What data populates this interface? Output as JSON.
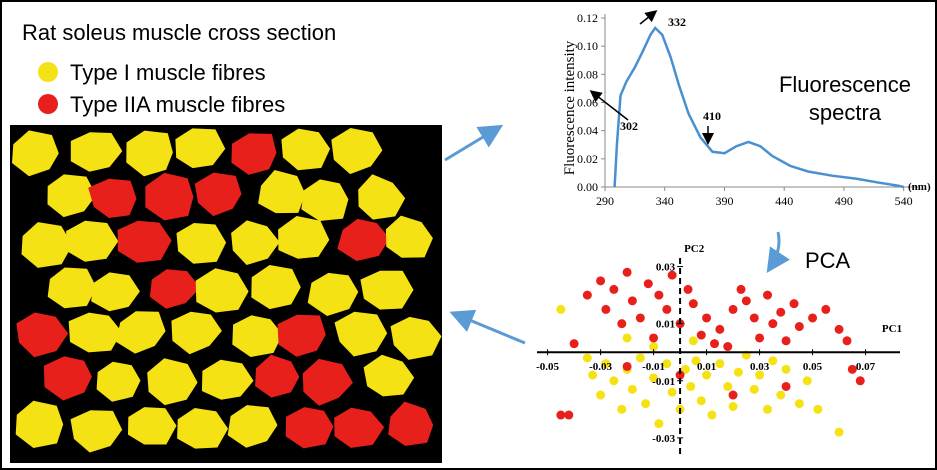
{
  "legend": {
    "title": "Rat soleus muscle cross section"
  },
  "labels": {
    "spectra": [
      "Fluorescence",
      "spectra"
    ],
    "pca": "PCA"
  },
  "chart_data": [
    {
      "type": "line",
      "y_label": "Fluorescence intensity",
      "x_unit": "(nm)",
      "annotations": [
        "332",
        "302",
        "410"
      ],
      "xlim": [
        290,
        552
      ],
      "ylim": [
        0,
        0.12
      ],
      "xticks": [
        290,
        340,
        390,
        440,
        490,
        540
      ],
      "yticks": [
        {
          "value": 0,
          "label": "0.00"
        },
        {
          "value": 0.02,
          "label": "0.02"
        },
        {
          "value": 0.04,
          "label": "0.04"
        },
        {
          "value": 0.06,
          "label": "0.06"
        },
        {
          "value": 0.08,
          "label": "0.08"
        },
        {
          "value": 0.1,
          "label": "0.10"
        },
        0.12
      ],
      "series": [
        {
          "color": "#4a8fd0",
          "x": [
            298,
            300,
            303,
            308,
            315,
            322,
            328,
            332,
            338,
            345,
            352,
            360,
            370,
            380,
            390,
            400,
            410,
            420,
            430,
            445,
            460,
            480,
            500,
            520,
            535,
            540
          ],
          "values": [
            0,
            0.03,
            0.065,
            0.075,
            0.085,
            0.097,
            0.108,
            0.113,
            0.108,
            0.092,
            0.072,
            0.052,
            0.035,
            0.025,
            0.024,
            0.029,
            0.032,
            0.029,
            0.022,
            0.015,
            0.011,
            0.008,
            0.006,
            0.003,
            0.001,
            0
          ]
        }
      ]
    },
    {
      "type": "scatter",
      "x_label": "PC1",
      "y_label": "PC2",
      "xlim": [
        -0.054,
        0.083
      ],
      "ylim": [
        -0.036,
        0.033
      ],
      "xticks": [
        -0.05,
        -0.03,
        -0.01,
        0.01,
        0.03,
        0.05,
        0.07
      ],
      "yticks": [
        0.03,
        0.01,
        -0.01,
        -0.03
      ],
      "series": [
        {
          "name": "Type I muscle fibres",
          "color": "#f5e214",
          "x": [
            -0.045,
            -0.035,
            -0.033,
            -0.03,
            -0.028,
            -0.025,
            -0.022,
            -0.02,
            -0.018,
            -0.015,
            -0.013,
            -0.01,
            -0.008,
            -0.005,
            -0.003,
            0,
            0.002,
            0.004,
            0.006,
            0.008,
            0.01,
            0.012,
            0.015,
            0.018,
            0.02,
            0.022,
            0.025,
            0.028,
            0.03,
            0.033,
            0.035,
            0.038,
            0.04,
            0.045,
            0.048,
            0.052,
            0.06,
            -0.02,
            0.005,
            -0.01
          ],
          "values": [
            0.015,
            -0.002,
            -0.008,
            -0.015,
            -0.004,
            -0.01,
            -0.02,
            -0.006,
            -0.013,
            -0.002,
            -0.018,
            -0.009,
            -0.025,
            -0.004,
            -0.014,
            -0.02,
            -0.006,
            -0.012,
            -0.003,
            -0.017,
            -0.008,
            -0.022,
            -0.004,
            -0.012,
            -0.019,
            -0.007,
            -0.001,
            -0.013,
            -0.008,
            -0.02,
            -0.003,
            -0.015,
            -0.006,
            -0.018,
            -0.01,
            -0.02,
            -0.028,
            0.005,
            0.004,
            0.002
          ]
        },
        {
          "name": "Type IIA muscle fibres",
          "color": "#e8201c",
          "x": [
            -0.035,
            -0.03,
            -0.028,
            -0.025,
            -0.022,
            -0.02,
            -0.018,
            -0.015,
            -0.012,
            -0.01,
            -0.008,
            -0.005,
            -0.003,
            0,
            0.003,
            0.005,
            0.008,
            0.01,
            0.013,
            0.015,
            0.018,
            0.02,
            0.023,
            0.025,
            0.028,
            0.03,
            0.033,
            0.035,
            0.038,
            0.04,
            0.043,
            0.045,
            0.05,
            0.055,
            0.06,
            0.063,
            0.065,
            0.068,
            -0.04,
            -0.045,
            -0.042,
            -0.02,
            0,
            0.02,
            0.04
          ],
          "values": [
            0.02,
            0.025,
            0.015,
            0.022,
            0.01,
            0.028,
            0.018,
            0.012,
            0.024,
            0.005,
            0.02,
            0.015,
            0.027,
            0.01,
            0.022,
            0.017,
            0.006,
            0.012,
            0.003,
            0.008,
            0.002,
            0.015,
            0.022,
            0.018,
            0.012,
            0.005,
            0.02,
            0.01,
            0.014,
            0.004,
            0.017,
            0.009,
            0.012,
            0.015,
            0.008,
            0.004,
            -0.006,
            -0.01,
            0.003,
            -0.022,
            -0.022,
            -0.005,
            -0.008,
            -0.015,
            -0.012
          ]
        }
      ]
    }
  ]
}
